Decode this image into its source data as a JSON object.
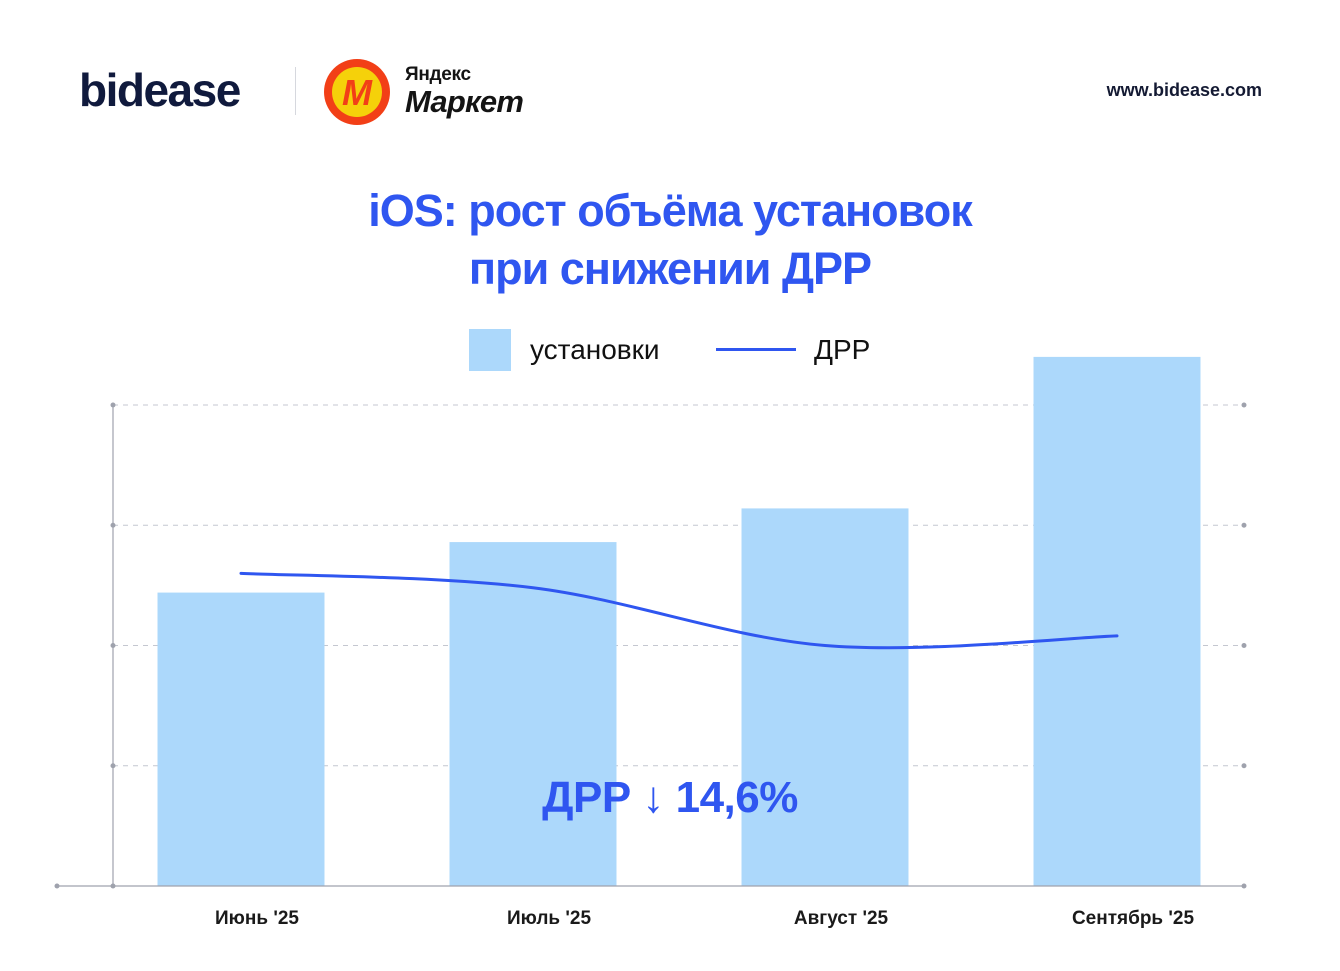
{
  "header": {
    "brand": "bidease",
    "partner_small": "Яндекс",
    "partner_big": "Маркет",
    "partner_logo_letter": "М",
    "url": "www.bidease.com"
  },
  "colors": {
    "accent": "#2f56f0",
    "bar": "#acd8fb",
    "grid": "#c4c7d0",
    "axis": "#9fa2ad",
    "ym_yellow": "#f5d10a",
    "ym_red": "#f23f17"
  },
  "chart_data": {
    "type": "bar",
    "title": [
      "iOS: рост объёма установок",
      "при снижении ДРР"
    ],
    "categories": [
      "Июнь '25",
      "Июль '25",
      "Август '25",
      "Сентябрь '25"
    ],
    "series": [
      {
        "name": "установки",
        "type": "bar",
        "values": [
          61,
          71.5,
          78.5,
          110
        ]
      },
      {
        "name": "ДРР",
        "type": "line",
        "values": [
          65,
          62,
          50,
          52
        ]
      }
    ],
    "ylim": [
      0,
      100
    ],
    "y_ticks": [
      0,
      25,
      50,
      75,
      100
    ],
    "grid": true,
    "legend_position": "top-center",
    "annotation": "ДРР ↓ 14,6%"
  }
}
